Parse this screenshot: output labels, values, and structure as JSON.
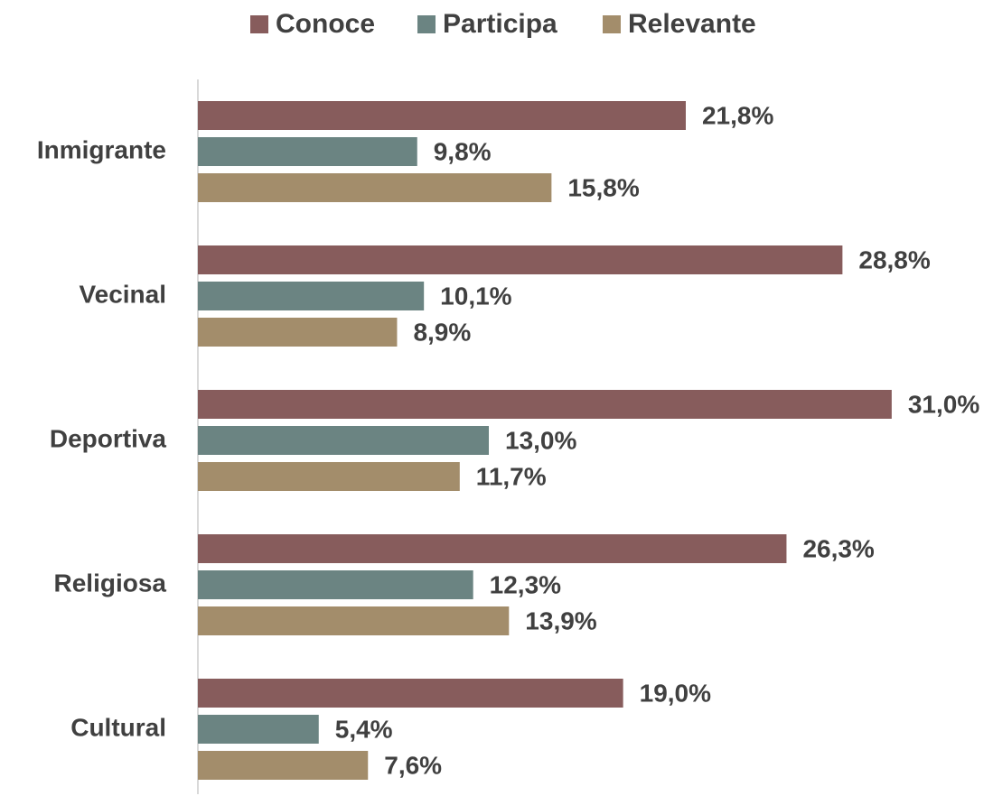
{
  "chart_data": {
    "type": "bar",
    "orientation": "horizontal",
    "categories": [
      "Inmigrante",
      "Vecinal",
      "Deportiva",
      "Religiosa",
      "Cultural"
    ],
    "series": [
      {
        "name": "Conoce",
        "color": "#875c5c",
        "values": [
          21.8,
          28.8,
          31.0,
          26.3,
          19.0
        ],
        "value_labels": [
          "21,8%",
          "28,8%",
          "31,0%",
          "26,3%",
          "19,0%"
        ]
      },
      {
        "name": "Participa",
        "color": "#6b8482",
        "values": [
          9.8,
          10.1,
          13.0,
          12.3,
          5.4
        ],
        "value_labels": [
          "9,8%",
          "10,1%",
          "13,0%",
          "12,3%",
          "5,4%"
        ]
      },
      {
        "name": "Relevante",
        "color": "#a38d6b",
        "values": [
          15.8,
          8.9,
          11.7,
          13.9,
          7.6
        ],
        "value_labels": [
          "15,8%",
          "8,9%",
          "11,7%",
          "13,9%",
          "7,6%"
        ]
      }
    ],
    "xlim": [
      0,
      35
    ],
    "legend": "top"
  }
}
